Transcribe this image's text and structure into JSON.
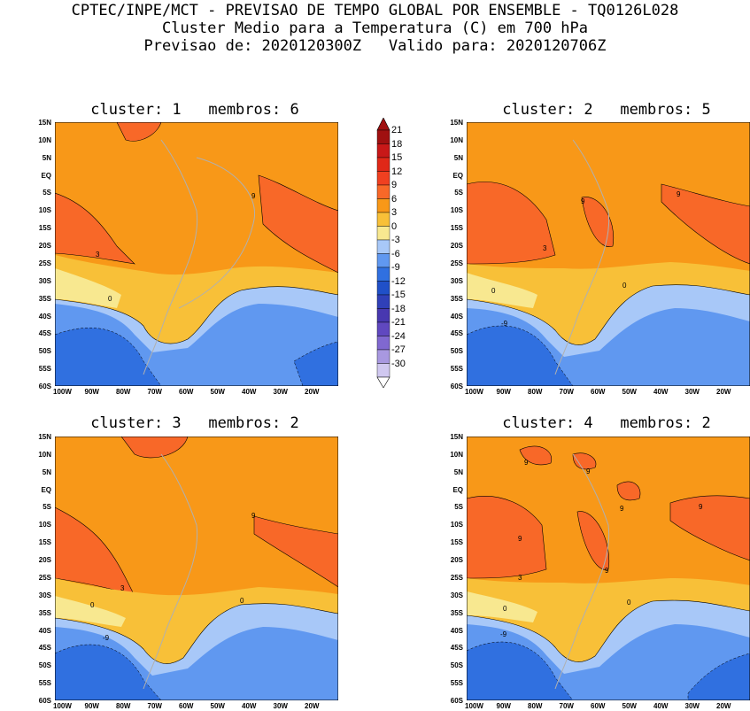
{
  "header": {
    "line1": "CPTEC/INPE/MCT - PREVISAO DE TEMPO GLOBAL POR ENSEMBLE - TQ0126L028",
    "line2": "Cluster Medio para a Temperatura (C) em 700 hPa",
    "line3": "Previsao de: 2020120300Z   Valido para: 2020120706Z"
  },
  "lat_ticks": [
    "15N",
    "10N",
    "5N",
    "EQ",
    "5S",
    "10S",
    "15S",
    "20S",
    "25S",
    "30S",
    "35S",
    "40S",
    "45S",
    "50S",
    "55S",
    "60S"
  ],
  "lon_ticks": [
    "100W",
    "90W",
    "80W",
    "70W",
    "60W",
    "50W",
    "40W",
    "30W",
    "20W"
  ],
  "colorbar": {
    "labels": [
      "21",
      "18",
      "15",
      "12",
      "9",
      "6",
      "3",
      "0",
      "-3",
      "-6",
      "-9",
      "-12",
      "-15",
      "-18",
      "-21",
      "-24",
      "-27",
      "-30"
    ],
    "colors": [
      "#a01010",
      "#c81818",
      "#e02818",
      "#f04020",
      "#f86828",
      "#f89818",
      "#f8c038",
      "#f8e890",
      "#a8c8f8",
      "#6098f0",
      "#3070e0",
      "#2050c8",
      "#3040b8",
      "#4838b0",
      "#6048c0",
      "#8068d0",
      "#a898e0",
      "#d0c8f0"
    ]
  },
  "panels": [
    {
      "title": "cluster: 1   membros: 6",
      "contour_labels": [
        "9",
        "3",
        "0"
      ]
    },
    {
      "title": "cluster: 2   membros: 5",
      "contour_labels": [
        "9",
        "9",
        "3",
        "0",
        "0",
        "-9"
      ]
    },
    {
      "title": "cluster: 3   membros: 2",
      "contour_labels": [
        "9",
        "3",
        "0",
        "0",
        "-9"
      ]
    },
    {
      "title": "cluster: 4   membros: 2",
      "contour_labels": [
        "9",
        "9",
        "9",
        "9",
        "9",
        "9",
        "3",
        "0",
        "0",
        "-9"
      ]
    }
  ]
}
